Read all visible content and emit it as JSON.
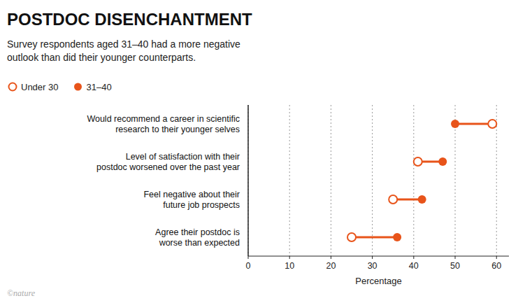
{
  "chart_data": {
    "type": "dumbbell",
    "title": "POSTDOC DISENCHANTMENT",
    "subtitle": "Survey respondents aged 31–40 had a more negative\noutlook than did their younger counterparts.",
    "categories": [
      "Would recommend a career in scientific\nresearch to their younger selves",
      "Level of satisfaction with their\npostdoc worsened over the past year",
      "Feel negative about their\nfuture job prospects",
      "Agree their postdoc is\nworse than expected"
    ],
    "series": [
      {
        "name": "Under 30",
        "color": "#e8541a",
        "marker": "open-circle",
        "values": [
          59,
          41,
          35,
          25
        ]
      },
      {
        "name": "31–40",
        "color": "#e8541a",
        "marker": "circle",
        "values": [
          50,
          47,
          42,
          36
        ]
      }
    ],
    "xlabel": "Percentage",
    "xlim": [
      0,
      63
    ],
    "xticks": [
      0,
      10,
      20,
      30,
      40,
      50,
      60
    ],
    "grid": true,
    "legend": "top",
    "annotations": [
      "©nature"
    ]
  }
}
